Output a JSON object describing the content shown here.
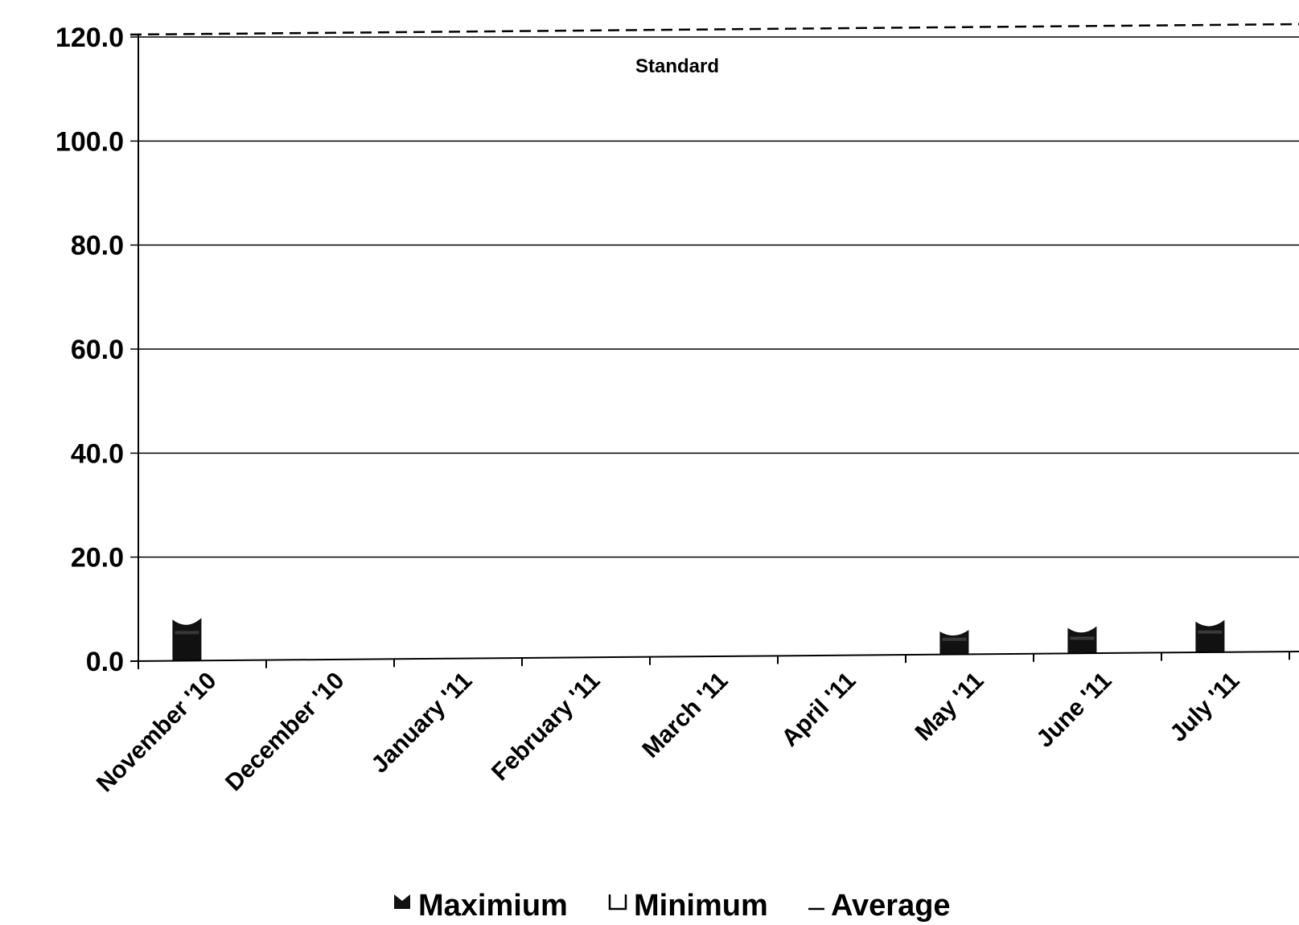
{
  "chart_data": {
    "type": "bar",
    "categories": [
      "November '10",
      "December '10",
      "January '11",
      "February '11",
      "March '11",
      "April '11",
      "May '11",
      "June '11",
      "July '11"
    ],
    "series": [
      {
        "name": "Maximium",
        "values": [
          8.0,
          null,
          null,
          null,
          null,
          null,
          4.5,
          5.0,
          6.0
        ]
      },
      {
        "name": "Minimum",
        "values": [
          5.5,
          null,
          null,
          null,
          null,
          null,
          3.0,
          3.0,
          4.0
        ]
      }
    ],
    "average_legend": "Average",
    "standard": {
      "label": "Standard",
      "value": 120.0
    },
    "yticks": [
      "0.0",
      "20.0",
      "40.0",
      "60.0",
      "80.0",
      "100.0",
      "120.0"
    ],
    "ylim": [
      0,
      120
    ],
    "grid": true,
    "legend_position": "bottom",
    "colors": {
      "maximum": "#111111",
      "minimum": "#ffffff",
      "grid": "#000000"
    }
  }
}
